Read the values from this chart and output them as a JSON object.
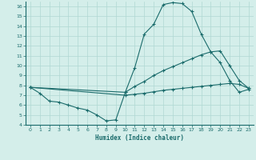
{
  "xlabel": "Humidex (Indice chaleur)",
  "xlim": [
    -0.5,
    23.5
  ],
  "ylim": [
    4,
    16.5
  ],
  "xticks": [
    0,
    1,
    2,
    3,
    4,
    5,
    6,
    7,
    8,
    9,
    10,
    11,
    12,
    13,
    14,
    15,
    16,
    17,
    18,
    19,
    20,
    21,
    22,
    23
  ],
  "yticks": [
    4,
    5,
    6,
    7,
    8,
    9,
    10,
    11,
    12,
    13,
    14,
    15,
    16
  ],
  "background_color": "#d4eeea",
  "line_color": "#1a6b6b",
  "grid_color": "#b0d8d2",
  "line1_x": [
    0,
    1,
    2,
    3,
    4,
    5,
    6,
    7,
    8,
    9,
    10,
    11,
    12,
    13,
    14,
    15,
    16,
    17,
    18,
    19,
    20,
    21,
    22,
    23
  ],
  "line1_y": [
    7.8,
    7.2,
    6.4,
    6.3,
    6.0,
    5.7,
    5.5,
    5.0,
    4.4,
    4.5,
    7.3,
    9.8,
    13.2,
    14.2,
    16.2,
    16.4,
    16.3,
    15.5,
    13.2,
    11.4,
    10.3,
    8.5,
    7.3,
    7.6
  ],
  "line2_x": [
    0,
    10,
    11,
    12,
    13,
    14,
    15,
    16,
    17,
    18,
    19,
    20,
    21,
    22,
    23
  ],
  "line2_y": [
    7.8,
    7.3,
    7.9,
    8.4,
    9.0,
    9.5,
    9.9,
    10.3,
    10.7,
    11.1,
    11.4,
    11.5,
    10.0,
    8.5,
    7.7
  ],
  "line3_x": [
    0,
    10,
    11,
    12,
    13,
    14,
    15,
    16,
    17,
    18,
    19,
    20,
    21,
    22,
    23
  ],
  "line3_y": [
    7.8,
    7.0,
    7.1,
    7.2,
    7.35,
    7.5,
    7.6,
    7.7,
    7.8,
    7.9,
    8.0,
    8.1,
    8.2,
    8.1,
    7.7
  ]
}
